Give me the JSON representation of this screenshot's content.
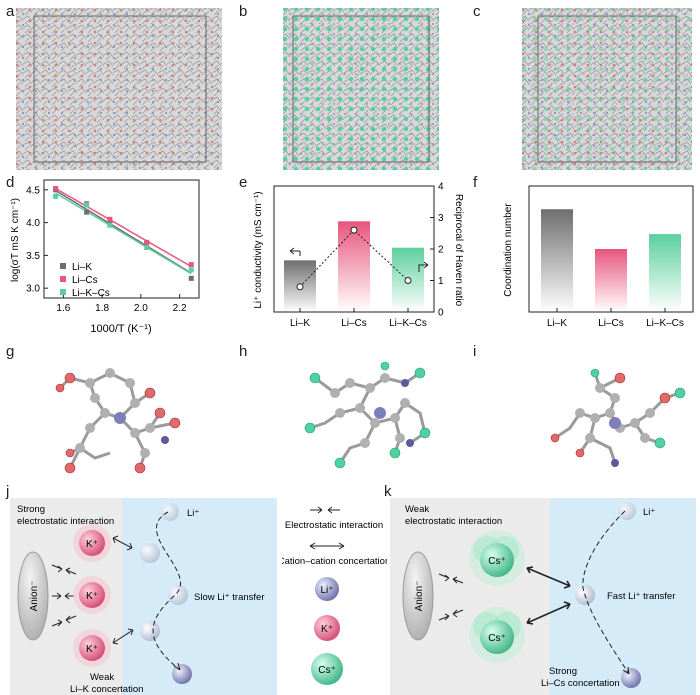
{
  "panel_labels": [
    "a",
    "b",
    "c",
    "d",
    "e",
    "f",
    "g",
    "h",
    "i",
    "j",
    "k"
  ],
  "colors": {
    "gray": "#6e6e6e",
    "pink": "#e8557d",
    "green": "#5ccf9e",
    "potassium": "#d95b80",
    "cesium": "#5cd1a0",
    "lithium": "#7d7fb8",
    "blue_bg": "#d6ebf8",
    "gray_bg": "#ebebeb"
  },
  "chart_data": [
    {
      "panel": "d",
      "type": "scatter",
      "xlabel": "1000/T (K⁻¹)",
      "ylabel": "log(σT mS K cm⁻¹)",
      "xlim": [
        1.5,
        2.3
      ],
      "ylim": [
        2.85,
        4.65
      ],
      "xticks": [
        "1.6",
        "1.8",
        "2.0",
        "2.2"
      ],
      "yticks": [
        "3.0",
        "3.5",
        "4.0",
        "4.5"
      ],
      "x": [
        1.56,
        1.72,
        1.84,
        2.03,
        2.26
      ],
      "series": [
        {
          "name": "Li–K",
          "values": [
            4.5,
            4.16,
            3.98,
            3.68,
            3.15
          ],
          "fit": [
            4.49,
            3.23
          ]
        },
        {
          "name": "Li–Cs",
          "values": [
            4.52,
            4.29,
            4.05,
            3.7,
            3.36
          ],
          "fit": [
            4.52,
            3.33
          ]
        },
        {
          "name": "Li–K–Cs",
          "values": [
            4.4,
            4.27,
            3.96,
            3.62,
            3.28
          ],
          "fit": [
            4.45,
            3.22
          ]
        }
      ]
    },
    {
      "panel": "e",
      "type": "bar",
      "categories": [
        "Li–K",
        "Li–Cs",
        "Li–K–Cs"
      ],
      "values": [
        0.41,
        0.72,
        0.51
      ],
      "ylabel": "Li⁺ conductivity (mS cm⁻¹)",
      "ylim": [
        0,
        1.0
      ],
      "y2label": "Reciprocal of Haven ratio",
      "y2lim": [
        0,
        4
      ],
      "y2ticks": [
        "0",
        "1",
        "2",
        "3",
        "4"
      ],
      "haven": [
        0.8,
        2.6,
        1.0
      ]
    },
    {
      "panel": "f",
      "type": "bar",
      "categories": [
        "Li–K",
        "Li–Cs",
        "Li–K–Cs"
      ],
      "values": [
        6.2,
        3.8,
        4.7
      ],
      "ylabel": "Coordination number",
      "ylim": [
        0,
        7.6
      ]
    }
  ],
  "schematic_j": {
    "title_line1": "Strong",
    "title_line2": "electrostatic interaction",
    "anion": "Anion⁻",
    "ion_label": "K⁺",
    "li_label": "Li⁺",
    "transfer": "Slow Li⁺ transfer",
    "bottom_line1": "Weak",
    "bottom_line2": "Li–K concertation"
  },
  "legend_mid": {
    "electrostatic": "Electrostatic interaction",
    "cation": "Cation–cation concertation",
    "li": "Li⁺",
    "k": "K⁺",
    "cs": "Cs⁺"
  },
  "schematic_k": {
    "title_line1": "Weak",
    "title_line2": "electrostatic interaction",
    "anion": "Anion⁻",
    "ion_label": "Cs⁺",
    "li_label": "Li⁺",
    "transfer": "Fast Li⁺ transfer",
    "bottom_line1": "Strong",
    "bottom_line2": "Li–Cs concertation"
  }
}
